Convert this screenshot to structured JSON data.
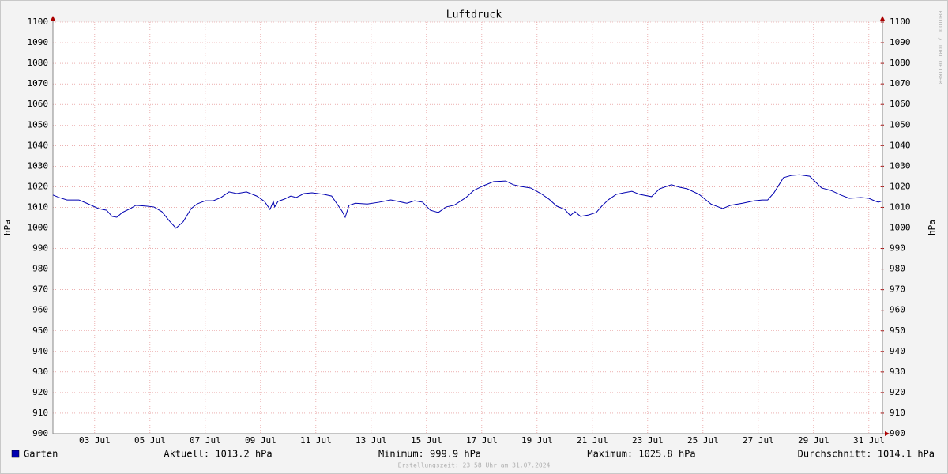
{
  "chart_data": {
    "type": "line",
    "title": "Luftdruck",
    "y_label": "hPa",
    "y2_label": "hPa",
    "side_note": "RRDTOOL / TOBI OETIKER",
    "footer": "Erstellungszeit: 23:58 Uhr am 31.07.2024",
    "x": [
      1.49,
      1.71,
      2.0,
      2.43,
      2.71,
      3.14,
      3.43,
      3.63,
      3.8,
      4.0,
      4.29,
      4.49,
      4.86,
      5.14,
      5.43,
      5.71,
      5.94,
      6.2,
      6.49,
      6.71,
      7.0,
      7.29,
      7.57,
      7.86,
      8.14,
      8.49,
      8.86,
      9.14,
      9.34,
      9.46,
      9.51,
      9.63,
      9.86,
      10.09,
      10.29,
      10.57,
      10.86,
      11.29,
      11.57,
      11.8,
      11.94,
      12.06,
      12.2,
      12.43,
      12.86,
      13.29,
      13.71,
      14.0,
      14.29,
      14.57,
      14.86,
      15.14,
      15.43,
      15.71,
      16.0,
      16.43,
      16.71,
      17.06,
      17.43,
      17.86,
      18.14,
      18.43,
      18.77,
      19.14,
      19.43,
      19.71,
      20.0,
      20.2,
      20.37,
      20.57,
      20.86,
      21.14,
      21.34,
      21.57,
      21.86,
      22.14,
      22.43,
      22.71,
      23.14,
      23.43,
      23.86,
      24.14,
      24.43,
      24.86,
      25.29,
      25.71,
      26.0,
      26.43,
      26.86,
      27.14,
      27.34,
      27.57,
      27.91,
      28.2,
      28.49,
      28.86,
      29.29,
      29.63,
      30.0,
      30.29,
      30.71,
      31.0,
      31.2,
      31.34,
      31.49
    ],
    "series": [
      {
        "name": "Garten",
        "color": "#0000b0",
        "values": [
          1016,
          1014.8,
          1013.6,
          1013.6,
          1012,
          1009.4,
          1008.6,
          1005.6,
          1005.2,
          1007.5,
          1009.4,
          1011,
          1010.6,
          1010.2,
          1007.9,
          1003.3,
          999.9,
          1003,
          1009.4,
          1011.7,
          1013.2,
          1013.2,
          1014.8,
          1017.5,
          1016.7,
          1017.5,
          1015.5,
          1012.9,
          1009,
          1012.9,
          1010.2,
          1012.9,
          1014,
          1015.5,
          1014.8,
          1016.7,
          1017.1,
          1016.3,
          1015.5,
          1011,
          1008.3,
          1005.2,
          1011,
          1012,
          1011.6,
          1012.5,
          1013.6,
          1012.8,
          1012,
          1013.2,
          1012.5,
          1008.6,
          1007.5,
          1010.2,
          1011,
          1014.8,
          1018.2,
          1020.5,
          1022.5,
          1022.8,
          1021,
          1020.1,
          1019.4,
          1016.7,
          1014,
          1010.6,
          1009,
          1006,
          1007.9,
          1005.6,
          1006.3,
          1007.5,
          1010.6,
          1013.6,
          1016.3,
          1017.1,
          1017.8,
          1016.3,
          1015.2,
          1019,
          1021,
          1019.8,
          1019,
          1016.3,
          1011.6,
          1009.4,
          1011,
          1012,
          1013.2,
          1013.6,
          1013.6,
          1017.1,
          1024.4,
          1025.5,
          1025.8,
          1025.1,
          1019.4,
          1018.2,
          1015.9,
          1014.4,
          1014.8,
          1014.4,
          1013.2,
          1012.5,
          1013.2
        ]
      }
    ],
    "legend_stats": [
      "Aktuell: 1013.2 hPa",
      "Minimum: 999.9 hPa",
      "Maximum: 1025.8 hPa",
      "Durchschnitt: 1014.1 hPa"
    ],
    "xlim": [
      1.49,
      31.49
    ],
    "xticks": [
      {
        "value": 3,
        "label": "03 Jul"
      },
      {
        "value": 5,
        "label": "05 Jul"
      },
      {
        "value": 7,
        "label": "07 Jul"
      },
      {
        "value": 9,
        "label": "09 Jul"
      },
      {
        "value": 11,
        "label": "11 Jul"
      },
      {
        "value": 13,
        "label": "13 Jul"
      },
      {
        "value": 15,
        "label": "15 Jul"
      },
      {
        "value": 17,
        "label": "17 Jul"
      },
      {
        "value": 19,
        "label": "19 Jul"
      },
      {
        "value": 21,
        "label": "21 Jul"
      },
      {
        "value": 23,
        "label": "23 Jul"
      },
      {
        "value": 25,
        "label": "25 Jul"
      },
      {
        "value": 27,
        "label": "27 Jul"
      },
      {
        "value": 29,
        "label": "29 Jul"
      },
      {
        "value": 31,
        "label": "31 Jul"
      }
    ],
    "ylim": [
      900,
      1100
    ],
    "yticks": [
      900,
      910,
      920,
      930,
      940,
      950,
      960,
      970,
      980,
      990,
      1000,
      1010,
      1020,
      1030,
      1040,
      1050,
      1060,
      1070,
      1080,
      1090,
      1100
    ],
    "y2lim": [
      900,
      1100
    ],
    "y2ticks": [
      900,
      910,
      920,
      930,
      940,
      950,
      960,
      970,
      980,
      990,
      1000,
      1010,
      1020,
      1030,
      1040,
      1050,
      1060,
      1070,
      1080,
      1090,
      1100
    ],
    "grid": true
  }
}
